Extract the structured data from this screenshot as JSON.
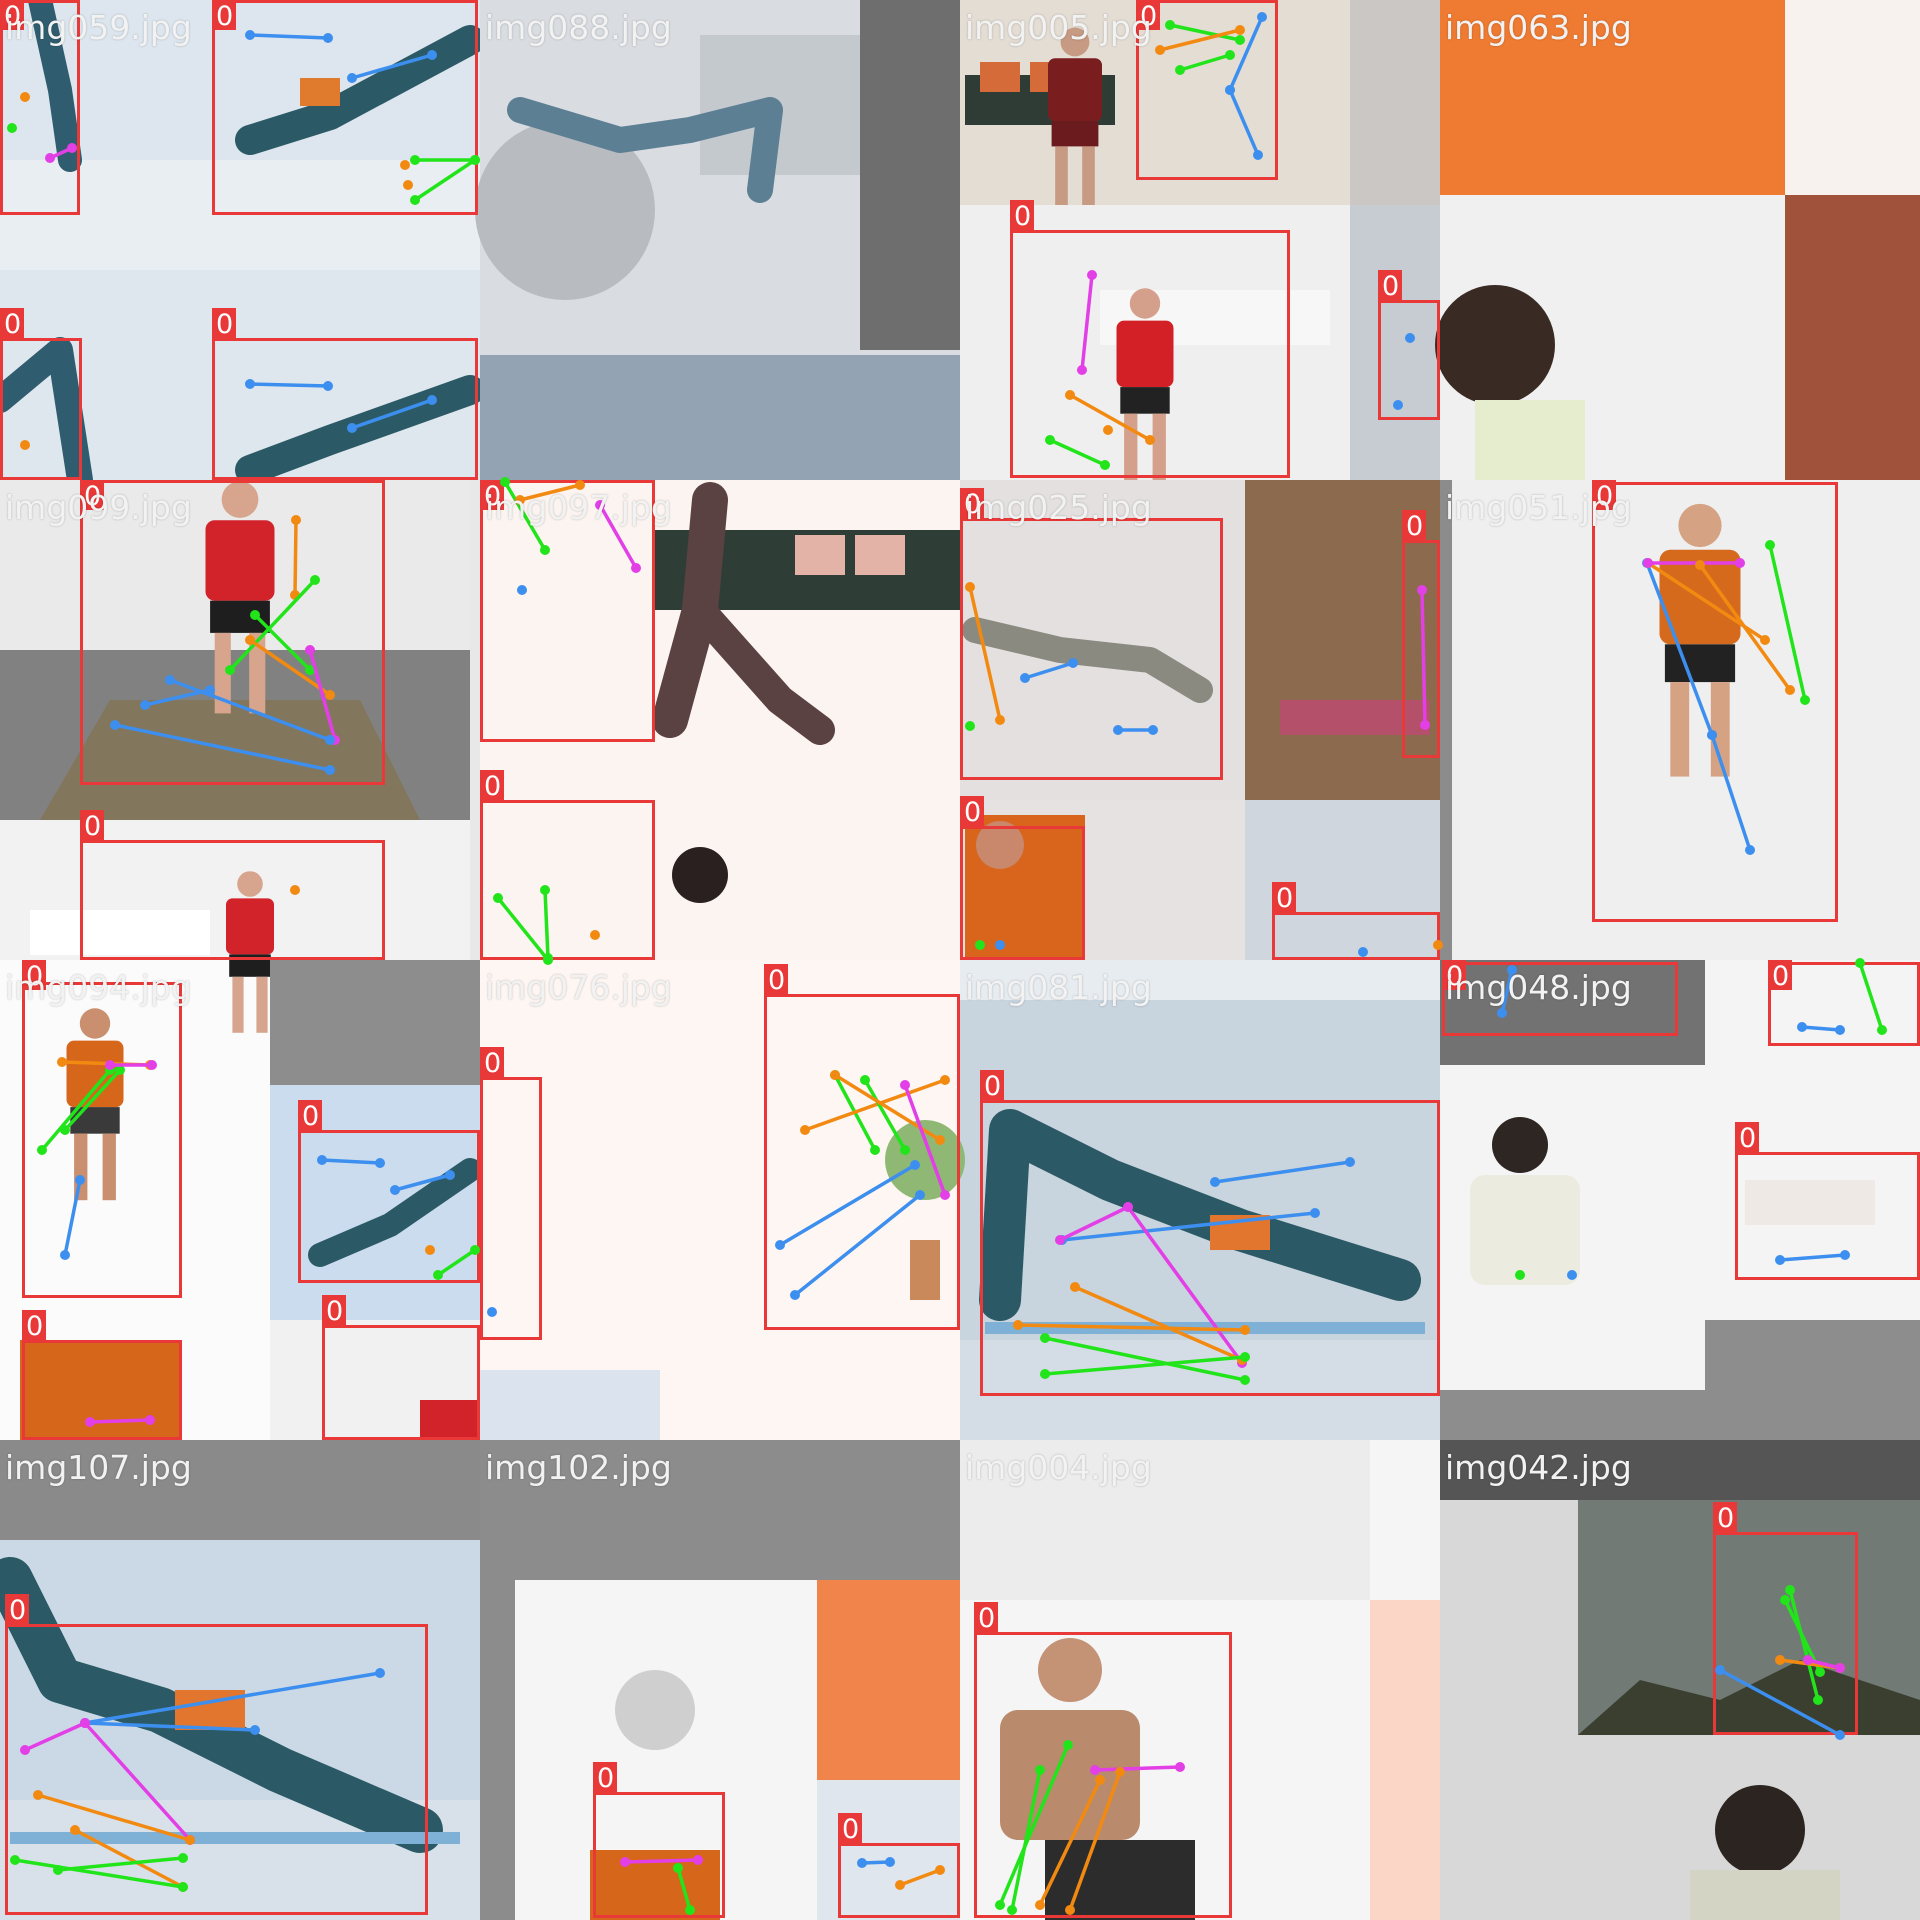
{
  "grid": {
    "rows": 4,
    "cols": 4
  },
  "colors": {
    "box": "#e83838",
    "limb_blue": "#3d8fef",
    "limb_orange": "#f28a12",
    "limb_green": "#22e41a",
    "limb_magenta": "#e33fe6",
    "tag_text": "#ffffff"
  },
  "tiles": [
    {
      "label": "img059.jpg",
      "bg": "#dde6ee",
      "scene": [
        "woman-yoga-mat",
        "legs"
      ]
    },
    {
      "label": "img088.jpg",
      "bg": "#c9d1d8",
      "scene": [
        "exercise-ball",
        "woman-bridge"
      ]
    },
    {
      "label": "img005.jpg",
      "bg": "#e9e5e0",
      "scene": [
        "living-room",
        "man-dumbbells"
      ]
    },
    {
      "label": "img063.jpg",
      "bg": "#f0f0f0",
      "scene": [
        "orange-wall",
        "man-pushup"
      ]
    },
    {
      "label": "img099.jpg",
      "bg": "#e8e8e8",
      "scene": [
        "man-dumbbells-gym"
      ]
    },
    {
      "label": "img097.jpg",
      "bg": "#fbf4f0",
      "scene": [
        "woman-living-room"
      ]
    },
    {
      "label": "img025.jpg",
      "bg": "#e6e2e2",
      "scene": [
        "man-plank",
        "woman-mat"
      ]
    },
    {
      "label": "img051.jpg",
      "bg": "#efefef",
      "scene": [
        "man-knee-raise"
      ]
    },
    {
      "label": "img094.jpg",
      "bg": "#fbfbfb",
      "scene": [
        "man-knee-raise-small",
        "woman-bridge"
      ]
    },
    {
      "label": "img076.jpg",
      "bg": "#fdf6f2",
      "scene": [
        "plant-room"
      ]
    },
    {
      "label": "img081.jpg",
      "bg": "#c8d4de",
      "scene": [
        "woman-glute-bridge"
      ]
    },
    {
      "label": "img048.jpg",
      "bg": "#f4f4f4",
      "scene": [
        "man-pushup-white",
        "woman-plank"
      ]
    },
    {
      "label": "img107.jpg",
      "bg": "#cbd9e6",
      "scene": [
        "woman-glute-bridge"
      ]
    },
    {
      "label": "img102.jpg",
      "bg": "#f5f5f5",
      "scene": [
        "exercise-ball",
        "man-knee-raise-small"
      ]
    },
    {
      "label": "img004.jpg",
      "bg": "#f5f5f5",
      "scene": [
        "man-knee-raise"
      ]
    },
    {
      "label": "img042.jpg",
      "bg": "#d8d8d8",
      "scene": [
        "landscape",
        "man-pushup"
      ]
    }
  ],
  "detection_class_label": "0",
  "icons": {
    "box": "bounding-box-icon",
    "keypoint": "keypoint-icon",
    "skeleton": "skeleton-line-icon"
  }
}
